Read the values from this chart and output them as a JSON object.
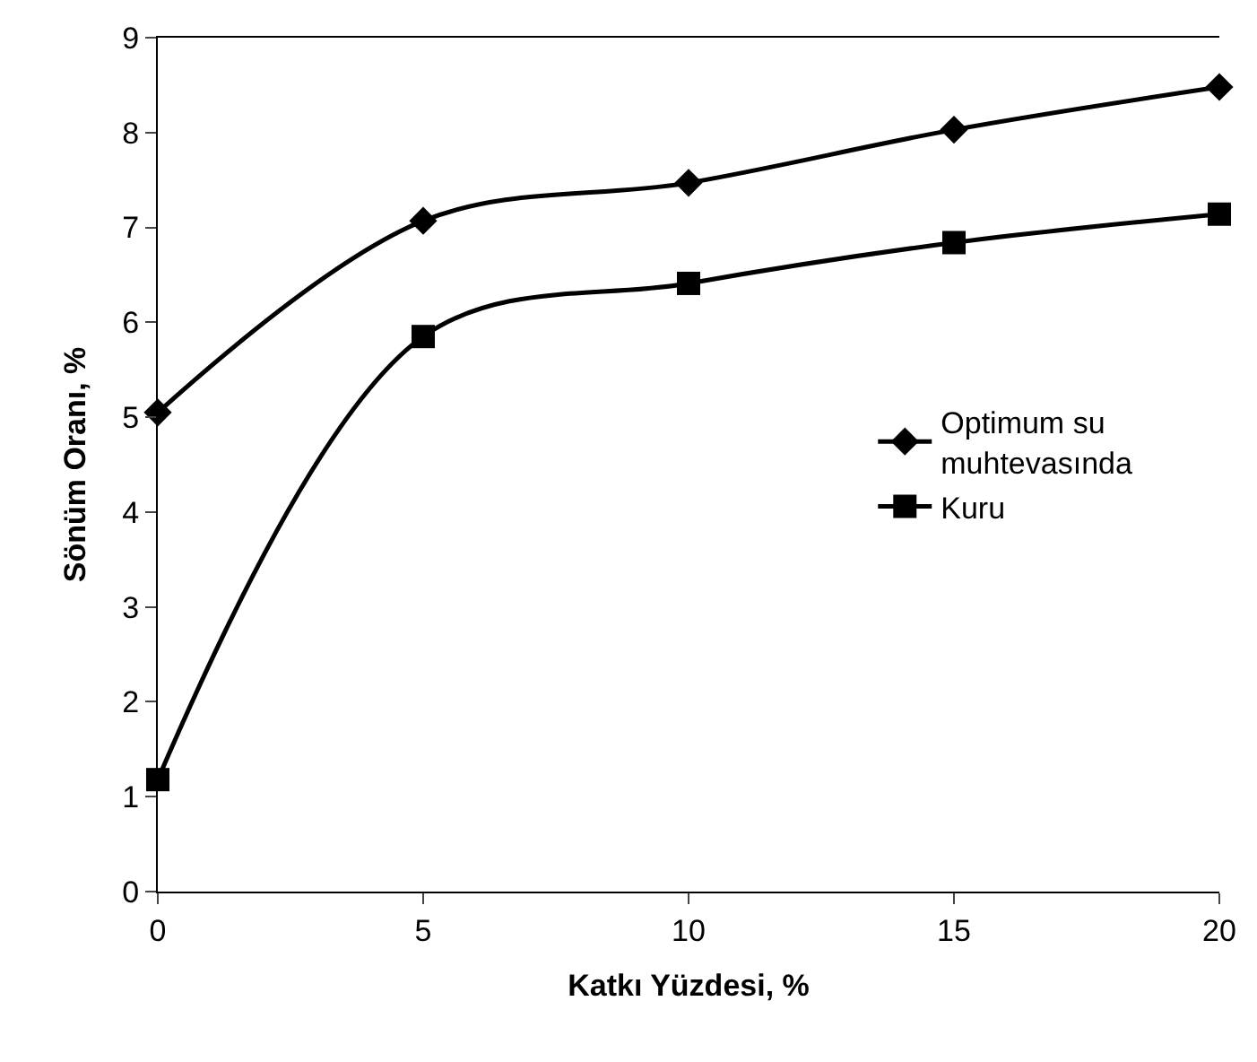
{
  "chart_data": {
    "type": "line",
    "xlabel": "Katkı Yüzdesi, %",
    "ylabel": "Sönüm Oranı, %",
    "x": [
      0,
      5,
      10,
      15,
      20
    ],
    "series": [
      {
        "name": "Optimum su muhtevasında",
        "color": "#000000",
        "marker": "diamond",
        "values": [
          5.05,
          7.07,
          7.47,
          8.03,
          8.48
        ]
      },
      {
        "name": "Kuru",
        "color": "#000000",
        "marker": "square",
        "values": [
          1.18,
          5.85,
          6.41,
          6.84,
          7.14
        ]
      }
    ],
    "xlim": [
      0,
      20
    ],
    "xticks": [
      0,
      5,
      10,
      15,
      20
    ],
    "ylim": [
      0,
      9
    ],
    "yticks": [
      0,
      1,
      2,
      3,
      4,
      5,
      6,
      7,
      8,
      9
    ],
    "legend": "right",
    "line_style": "solid"
  }
}
